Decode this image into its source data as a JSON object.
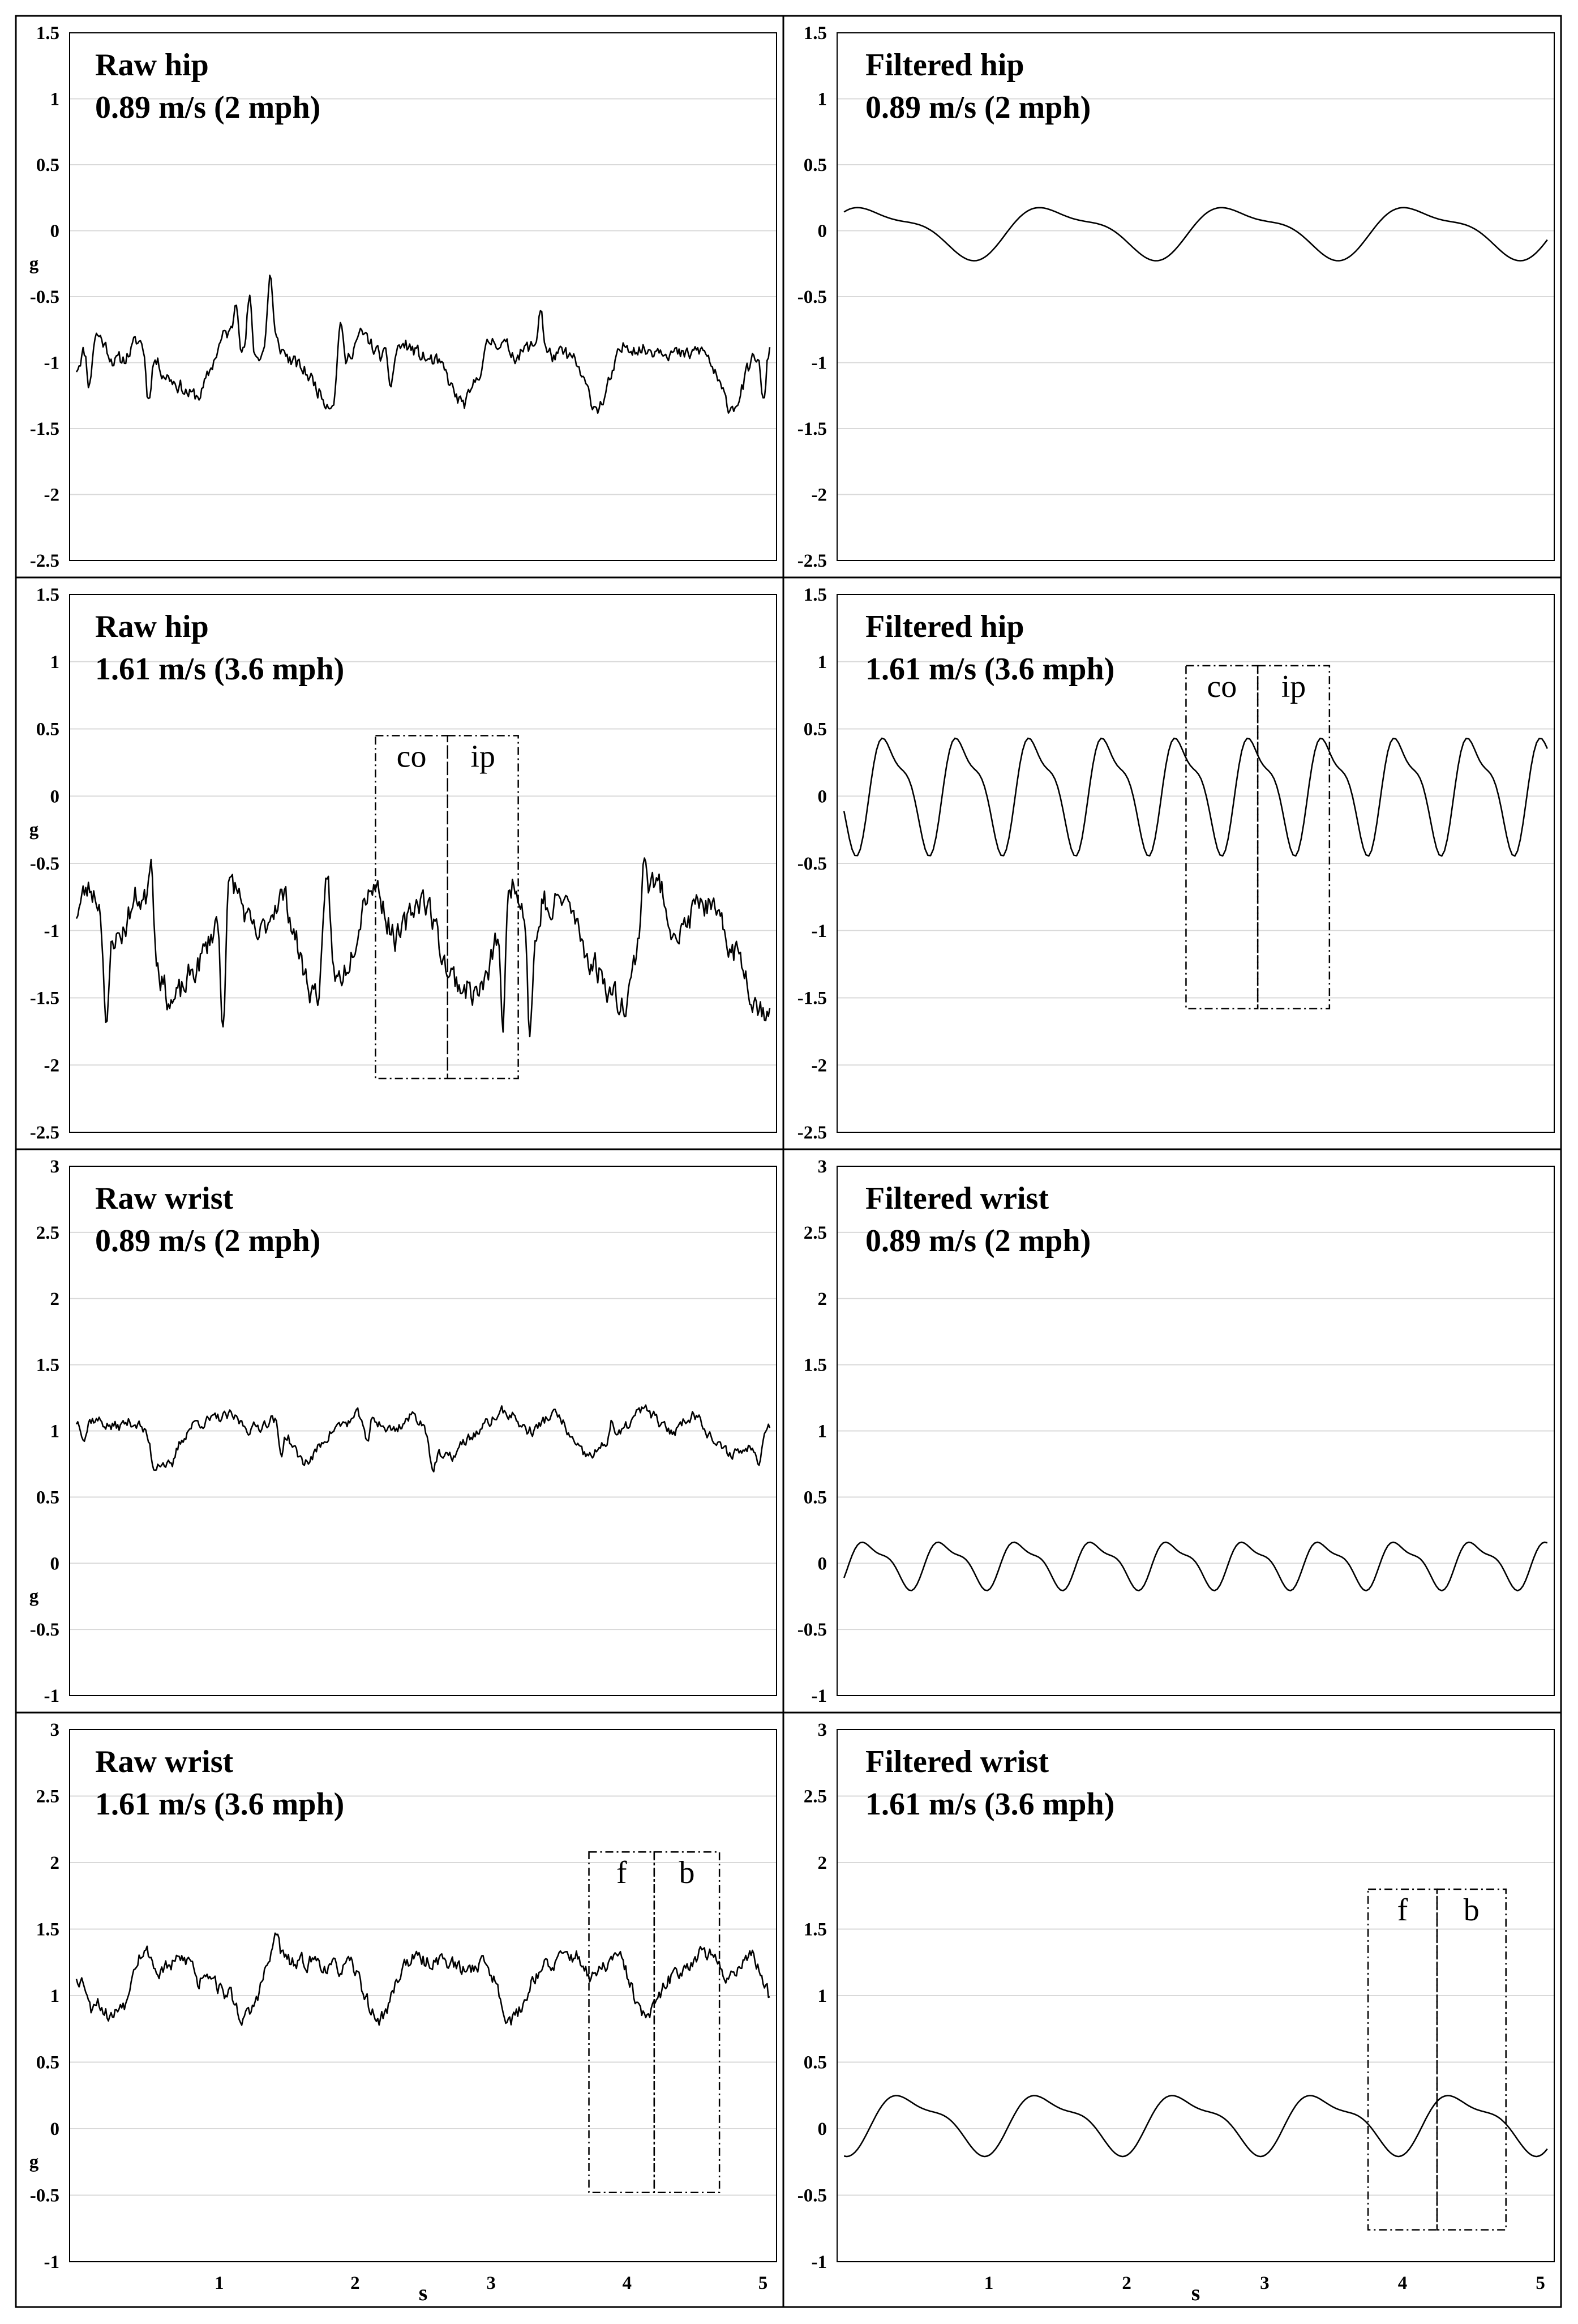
{
  "chart_data": [
    {
      "type": "line",
      "title": "Raw hip",
      "subtitle": "0.89 m/s (2 mph)",
      "ylabel": "g",
      "xlabel": "",
      "xlim": [
        -0.1,
        5.1
      ],
      "ylim": [
        -2.5,
        1.5
      ],
      "yticks": [
        "1.5",
        "1",
        "0.5",
        "0",
        "-0.5",
        "-1",
        "-1.5",
        "-2",
        "-2.5"
      ],
      "xticks": [],
      "grid": true,
      "signal": {
        "kind": "raw",
        "mean": -1.0,
        "amp": 0.3,
        "period": 1.0,
        "phase": 0.0,
        "seed": 11,
        "spike": 0.55
      },
      "boxes": []
    },
    {
      "type": "line",
      "title": "Filtered hip",
      "subtitle": "0.89 m/s (2 mph)",
      "ylabel": "",
      "xlabel": "",
      "xlim": [
        -0.1,
        5.1
      ],
      "ylim": [
        -2.5,
        1.5
      ],
      "yticks": [
        "1.5",
        "1",
        "0.5",
        "0",
        "-0.5",
        "-1",
        "-1.5",
        "-2",
        "-2.5"
      ],
      "xticks": [],
      "grid": true,
      "signal": {
        "kind": "filtered",
        "mean": 0.0,
        "amp": 0.22,
        "period": 1.32,
        "phase": 0.15,
        "seed": 0,
        "spike": 0
      },
      "boxes": []
    },
    {
      "type": "line",
      "title": "Raw hip",
      "subtitle": "1.61 m/s (3.6 mph)",
      "ylabel": "g",
      "xlabel": "",
      "xlim": [
        -0.1,
        5.1
      ],
      "ylim": [
        -2.5,
        1.5
      ],
      "yticks": [
        "1.5",
        "1",
        "0.5",
        "0",
        "-0.5",
        "-1",
        "-1.5",
        "-2",
        "-2.5"
      ],
      "xticks": [],
      "grid": true,
      "signal": {
        "kind": "raw",
        "mean": -1.05,
        "amp": 0.55,
        "period": 1.06,
        "phase": 0.1,
        "seed": 23,
        "spike": 0.9
      },
      "boxes": [
        {
          "label": "co",
          "x0": 2.15,
          "x1": 2.68,
          "y0": -2.1,
          "y1": 0.45
        },
        {
          "label": "ip",
          "x0": 2.68,
          "x1": 3.2,
          "y0": -2.1,
          "y1": 0.45
        }
      ]
    },
    {
      "type": "line",
      "title": "Filtered hip",
      "subtitle": "1.61 m/s (3.6 mph)",
      "ylabel": "",
      "xlabel": "",
      "xlim": [
        -0.1,
        5.1
      ],
      "ylim": [
        -2.5,
        1.5
      ],
      "yticks": [
        "1.5",
        "1",
        "0.5",
        "0",
        "-0.5",
        "-1",
        "-1.5",
        "-2",
        "-2.5"
      ],
      "xticks": [],
      "grid": true,
      "signal": {
        "kind": "filtered",
        "mean": 0.05,
        "amp": 0.48,
        "period": 0.53,
        "phase": 0.38,
        "seed": 0,
        "spike": 0
      },
      "boxes": [
        {
          "label": "co",
          "x0": 2.43,
          "x1": 2.95,
          "y0": -1.58,
          "y1": 0.97
        },
        {
          "label": "ip",
          "x0": 2.95,
          "x1": 3.47,
          "y0": -1.58,
          "y1": 0.97
        }
      ]
    },
    {
      "type": "line",
      "title": "Raw wrist",
      "subtitle": "0.89 m/s (2 mph)",
      "ylabel": "g",
      "xlabel": "",
      "xlim": [
        -0.1,
        5.1
      ],
      "ylim": [
        -1,
        3
      ],
      "yticks": [
        "3",
        "2.5",
        "2",
        "1.5",
        "1",
        "0.5",
        "0",
        "-0.5",
        "-1"
      ],
      "xticks": [],
      "grid": true,
      "signal": {
        "kind": "raw",
        "mean": 1.0,
        "amp": 0.22,
        "period": 1.05,
        "phase": 0.2,
        "seed": 37,
        "spike": 0.25
      },
      "boxes": []
    },
    {
      "type": "line",
      "title": "Filtered wrist",
      "subtitle": "0.89 m/s (2 mph)",
      "ylabel": "",
      "xlabel": "",
      "xlim": [
        -0.1,
        5.1
      ],
      "ylim": [
        -1,
        3
      ],
      "yticks": [
        "3",
        "2.5",
        "2",
        "1.5",
        "1",
        "0.5",
        "0",
        "-0.5",
        "-1"
      ],
      "xticks": [],
      "grid": true,
      "signal": {
        "kind": "filtered",
        "mean": 0.0,
        "amp": 0.2,
        "period": 0.55,
        "phase": 0.0,
        "seed": 0,
        "spike": 0
      },
      "boxes": []
    },
    {
      "type": "line",
      "title": "Raw wrist",
      "subtitle": "1.61 m/s (3.6 mph)",
      "ylabel": "g",
      "xlabel": "s",
      "xlim": [
        -0.1,
        5.1
      ],
      "ylim": [
        -1,
        3
      ],
      "yticks": [
        "3",
        "2.5",
        "2",
        "1.5",
        "1",
        "0.5",
        "0",
        "-0.5",
        "-1"
      ],
      "xticks": [
        "1",
        "2",
        "3",
        "4",
        "5"
      ],
      "grid": true,
      "signal": {
        "kind": "raw",
        "mean": 1.15,
        "amp": 0.3,
        "period": 1.0,
        "phase": 0.6,
        "seed": 53,
        "spike": 0.2
      },
      "boxes": [
        {
          "label": "f",
          "x0": 3.72,
          "x1": 4.2,
          "y0": -0.48,
          "y1": 2.08
        },
        {
          "label": "b",
          "x0": 4.2,
          "x1": 4.68,
          "y0": -0.48,
          "y1": 2.08
        }
      ]
    },
    {
      "type": "line",
      "title": "Filtered wrist",
      "subtitle": "1.61 m/s (3.6 mph)",
      "ylabel": "",
      "xlabel": "s",
      "xlim": [
        -0.1,
        5.1
      ],
      "ylim": [
        -1,
        3
      ],
      "yticks": [
        "3",
        "2.5",
        "2",
        "1.5",
        "1",
        "0.5",
        "0",
        "-0.5",
        "-1"
      ],
      "xticks": [
        "1",
        "2",
        "3",
        "4",
        "5"
      ],
      "grid": true,
      "signal": {
        "kind": "filtered",
        "mean": 0.05,
        "amp": 0.25,
        "period": 1.0,
        "phase": 0.82,
        "seed": 0,
        "spike": 0
      },
      "boxes": [
        {
          "label": "f",
          "x0": 3.75,
          "x1": 4.25,
          "y0": -0.76,
          "y1": 1.8
        },
        {
          "label": "b",
          "x0": 4.25,
          "x1": 4.75,
          "y0": -0.76,
          "y1": 1.8
        }
      ]
    }
  ]
}
